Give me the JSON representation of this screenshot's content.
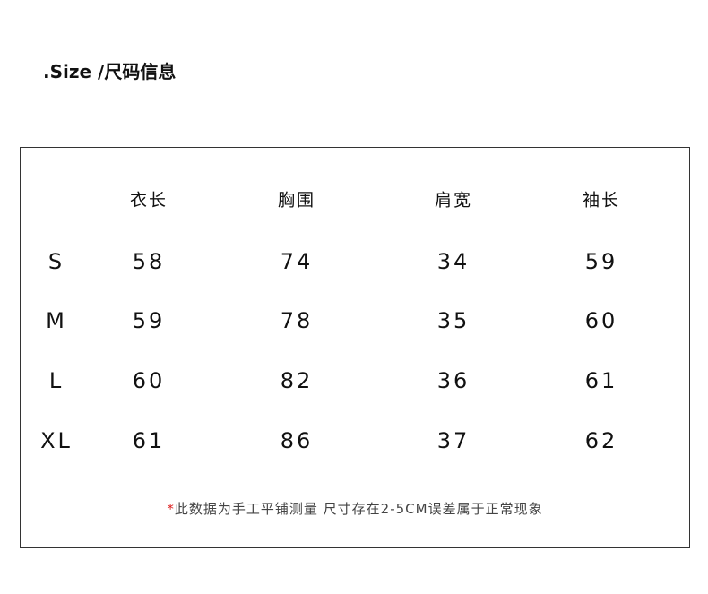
{
  "header": {
    "title": ".Size /尺码信息"
  },
  "table": {
    "columns": [
      "衣长",
      "胸围",
      "肩宽",
      "袖长"
    ],
    "rows": [
      [
        "S",
        58,
        74,
        34,
        59
      ],
      [
        "M",
        59,
        78,
        35,
        60
      ],
      [
        "L",
        60,
        82,
        36,
        61
      ],
      [
        "XL",
        61,
        86,
        37,
        62
      ]
    ]
  },
  "note": {
    "mark": "*",
    "text": "此数据为手工平铺测量 尺寸存在2-5CM误差属于正常现象"
  }
}
